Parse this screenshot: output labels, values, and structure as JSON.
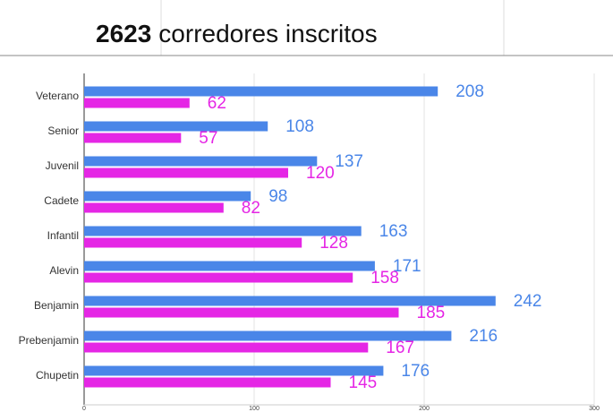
{
  "header": {
    "count": "2623",
    "label": "corredores inscritos"
  },
  "chart_data": {
    "type": "hbar",
    "categories": [
      "Veterano",
      "Senior",
      "Juvenil",
      "Cadete",
      "Infantil",
      "Alevin",
      "Benjamin",
      "Prebenjamin",
      "Chupetin"
    ],
    "series": [
      {
        "color": "#4a86e8",
        "values": [
          208,
          108,
          137,
          98,
          163,
          171,
          242,
          216,
          176
        ]
      },
      {
        "color": "#e526e5",
        "values": [
          62,
          57,
          120,
          82,
          128,
          158,
          185,
          167,
          145
        ]
      }
    ],
    "xlim": [
      0,
      300
    ],
    "xticks": [
      0,
      100,
      200,
      300
    ],
    "grid": true
  }
}
